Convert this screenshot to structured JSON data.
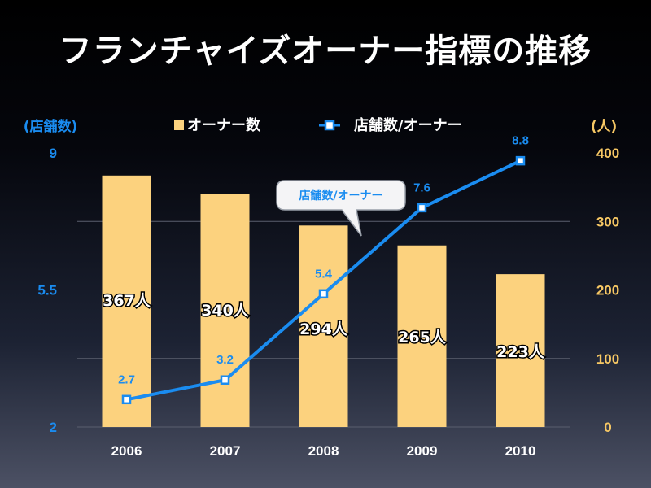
{
  "title": "フランチャイズオーナー指標の推移",
  "legend": {
    "bar": "オーナー数",
    "line": "店舗数/オーナー"
  },
  "callout": "店舗数/オーナー",
  "colors": {
    "bar": "#fcd27e",
    "line": "#1a8cf0",
    "right_axis": "#f7c864",
    "left_axis": "#1a8cf0"
  },
  "chart_data": {
    "type": "bar+line",
    "categories": [
      "2006",
      "2007",
      "2008",
      "2009",
      "2010"
    ],
    "series": [
      {
        "name": "オーナー数",
        "type": "bar",
        "axis": "right",
        "values": [
          367,
          340,
          294,
          265,
          223
        ],
        "labels": [
          "367人",
          "340人",
          "294人",
          "265人",
          "223人"
        ]
      },
      {
        "name": "店舗数/オーナー",
        "type": "line",
        "axis": "left",
        "values": [
          2.7,
          3.2,
          5.4,
          7.6,
          8.8
        ],
        "labels": [
          "2.7",
          "3.2",
          "5.4",
          "7.6",
          "8.8"
        ]
      }
    ],
    "left_axis": {
      "unit": "(店舗数)",
      "ylim": [
        2,
        9
      ],
      "ticks": [
        "9",
        "5.5",
        "2"
      ]
    },
    "right_axis": {
      "unit": "(人)",
      "ylim": [
        0,
        400
      ],
      "ticks": [
        "400",
        "300",
        "200",
        "100",
        "0"
      ]
    },
    "grid": true,
    "legend_position": "top"
  }
}
